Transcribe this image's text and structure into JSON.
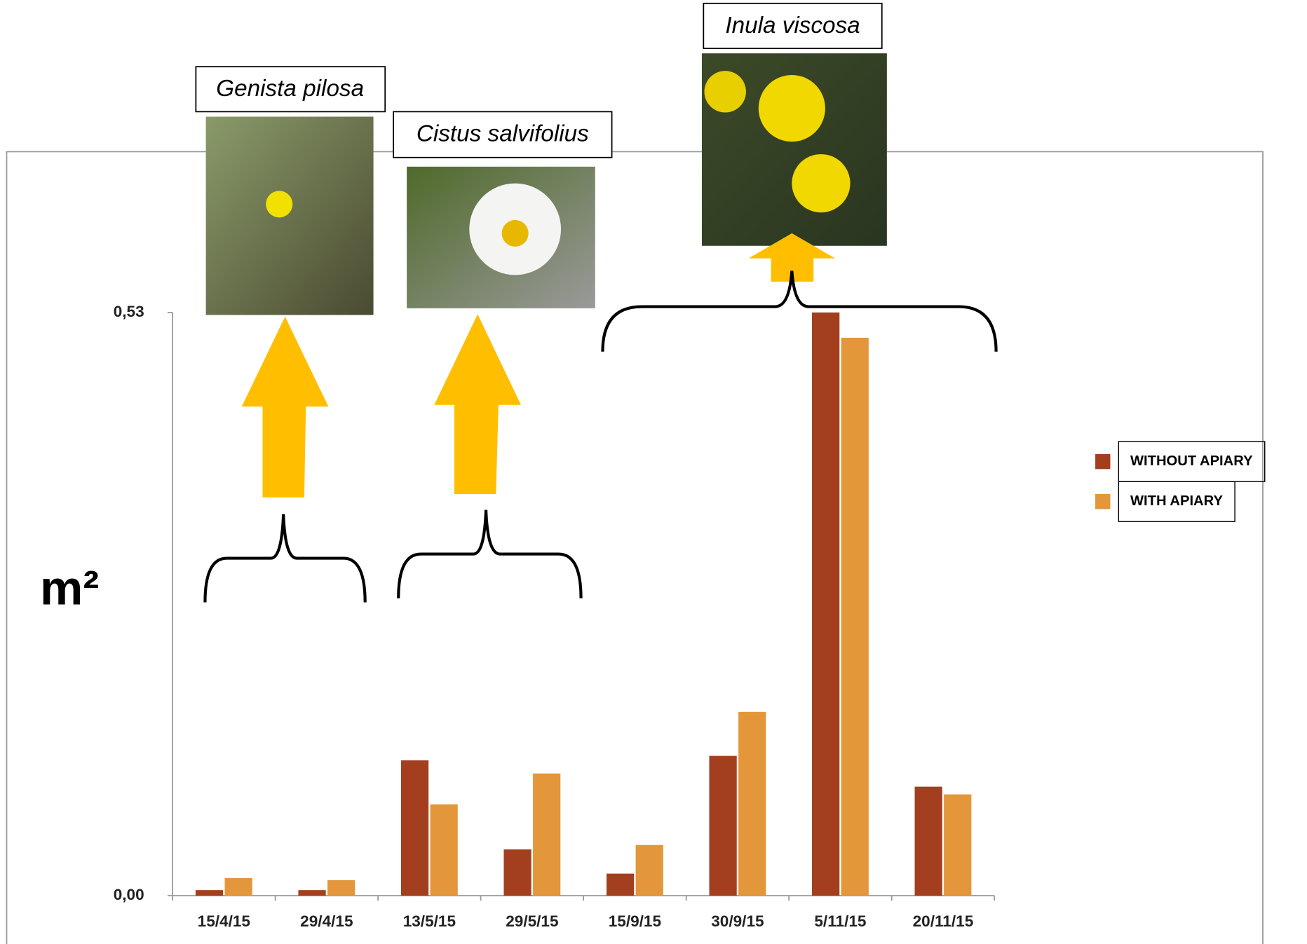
{
  "chart_data": {
    "type": "bar",
    "y_label": "m²",
    "annotations": [
      "Genista pilosa",
      "Cistus salvifolius",
      "Inula viscosa"
    ],
    "categories": [
      "15/4/15",
      "29/4/15",
      "13/5/15",
      "29/5/15",
      "15/9/15",
      "30/9/15",
      "5/11/15",
      "20/11/15"
    ],
    "series": [
      {
        "name": "WITHOUT APIARY",
        "color": "#a33f1f",
        "values": [
          0.005,
          0.005,
          0.123,
          0.042,
          0.02,
          0.127,
          0.53,
          0.099
        ]
      },
      {
        "name": "WITH APIARY",
        "color": "#e4963a",
        "values": [
          0.016,
          0.014,
          0.083,
          0.111,
          0.046,
          0.167,
          0.507,
          0.092
        ]
      }
    ],
    "ylim": [
      0,
      0.53
    ],
    "yticks": [
      {
        "value": 0,
        "label": "0,00"
      },
      {
        "value": 0.53,
        "label": "0,53"
      }
    ],
    "grid": false,
    "legend": "right"
  }
}
